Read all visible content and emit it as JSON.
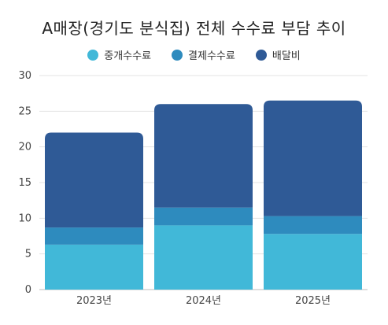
{
  "chart_data": {
    "type": "bar",
    "stacked": true,
    "title": "A매장(경기도 분식집) 전체 수수료 부담 추이",
    "categories": [
      "2023년",
      "2024년",
      "2025년"
    ],
    "series": [
      {
        "name": "중개수수료",
        "values": [
          6.3,
          9.0,
          7.8
        ],
        "color": "#41B8D8"
      },
      {
        "name": "결제수수료",
        "values": [
          2.4,
          2.5,
          2.5
        ],
        "color": "#2E8BBE"
      },
      {
        "name": "배달비",
        "values": [
          13.3,
          14.5,
          16.2
        ],
        "color": "#2F5A96"
      }
    ],
    "ylim": [
      0,
      30
    ],
    "yticks": [
      "0",
      "5",
      "10",
      "15",
      "20",
      "25",
      "30"
    ],
    "grid": true,
    "legend_position": "top"
  }
}
